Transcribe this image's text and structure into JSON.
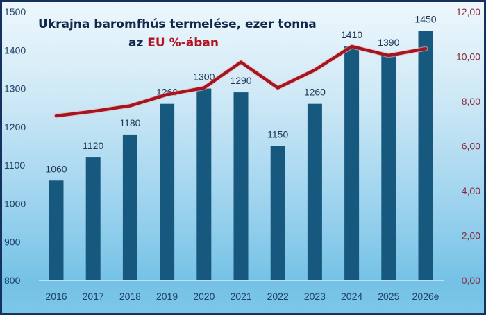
{
  "chart_data": {
    "type": "bar+line",
    "title_line1": "Ukrajna baromfhús termelése, ezer tonna",
    "title_line2_prefix": "az ",
    "title_line2_highlight": "EU",
    "title_line2_suffix": " %-ában",
    "categories": [
      "2016",
      "2017",
      "2018",
      "2019",
      "2020",
      "2021",
      "2022",
      "2023",
      "2024",
      "2025",
      "2026e"
    ],
    "series": [
      {
        "name": "Termelés (ezer tonna)",
        "type": "bar",
        "axis": "left",
        "color": "#17587e",
        "values": [
          1060,
          1120,
          1180,
          1260,
          1300,
          1290,
          1150,
          1260,
          1410,
          1390,
          1450
        ],
        "labels": [
          "1060",
          "1120",
          "1180",
          "1260",
          "1300",
          "1290",
          "1150",
          "1260",
          "1410",
          "1390",
          "1450"
        ]
      },
      {
        "name": "EU %-ában",
        "type": "line",
        "axis": "right",
        "color": "#a3151f",
        "values": [
          7.35,
          7.55,
          7.8,
          8.3,
          8.6,
          9.75,
          8.6,
          9.4,
          10.45,
          10.05,
          10.35
        ]
      }
    ],
    "left_axis": {
      "min": 800,
      "max": 1500,
      "step": 100,
      "ticks": [
        "800",
        "900",
        "1000",
        "1100",
        "1200",
        "1300",
        "1400",
        "1500"
      ]
    },
    "right_axis": {
      "min": 0,
      "max": 12,
      "step": 2,
      "ticks": [
        "0,00",
        "2,00",
        "4,00",
        "6,00",
        "8,00",
        "10,00",
        "12,00"
      ]
    },
    "grid": false,
    "legend": "none",
    "colors": {
      "bar": "#17587e",
      "line": "#a3151f",
      "title": "#13294b",
      "title_highlight": "#b3141f",
      "right_ticks": "#8a2b3a",
      "left_ticks": "#1f3f66",
      "border": "#15325e"
    }
  }
}
